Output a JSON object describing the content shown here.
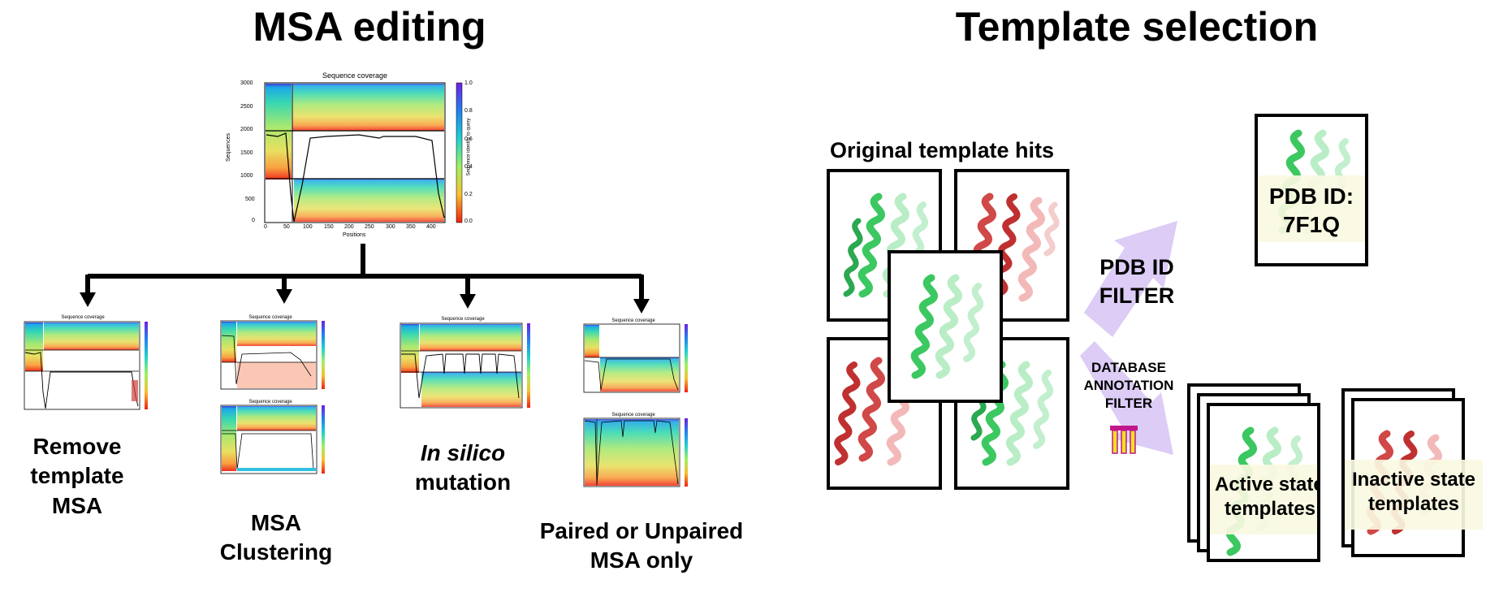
{
  "left": {
    "title": "MSA editing",
    "main_plot": {
      "title": "Sequence coverage",
      "xlabel": "Positions",
      "ylabel": "Sequences",
      "colorbar_label": "Sequence identity to query",
      "x_ticks": [
        "0",
        "50",
        "100",
        "150",
        "200",
        "250",
        "300",
        "350",
        "400"
      ],
      "y_ticks": [
        "0",
        "500",
        "1000",
        "1500",
        "2000",
        "2500",
        "3000"
      ],
      "cbar_ticks": [
        "0.0",
        "0.2",
        "0.4",
        "0.6",
        "0.8",
        "1.0"
      ]
    },
    "small_plot_title": "Sequence coverage",
    "branches": [
      {
        "label_line1": "Remove",
        "label_line2": "template",
        "label_line3": "MSA"
      },
      {
        "label_line1": "MSA",
        "label_line2": "Clustering"
      },
      {
        "label_line1_italic": "In silico",
        "label_line2": "mutation"
      },
      {
        "label_line1": "Paired or Unpaired",
        "label_line2": "MSA only"
      }
    ]
  },
  "right": {
    "title": "Template selection",
    "hits_label": "Original template hits",
    "pdb_filter": {
      "line1": "PDB ID",
      "line2": "FILTER"
    },
    "db_filter": {
      "line1": "DATABASE",
      "line2": "ANNOTATION",
      "line3": "FILTER"
    },
    "pdb_result": {
      "line1": "PDB ID:",
      "line2": "7F1Q"
    },
    "active": {
      "line1": "Active state",
      "line2": "templates"
    },
    "inactive": {
      "line1": "Inactive state",
      "line2": "templates"
    }
  },
  "colors": {
    "active_green": "#3cc860",
    "inactive_red": "#d04848",
    "arrow_lavender": "#dcccf6",
    "overlay_cream": "#faf8e1",
    "filter_icon_magenta": "#c0188c",
    "filter_icon_yellow": "#f0e020"
  }
}
